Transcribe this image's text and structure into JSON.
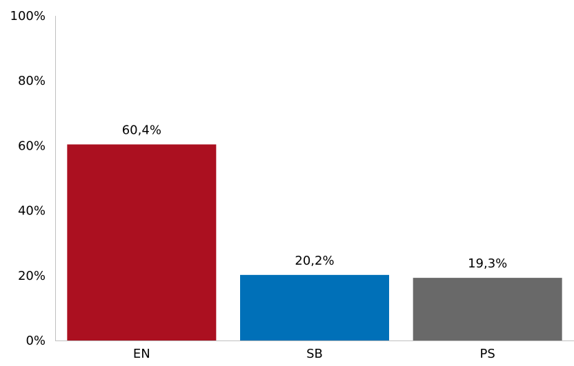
{
  "chart_data": {
    "type": "bar",
    "title": "",
    "xlabel": "",
    "ylabel": "",
    "categories": [
      "EN",
      "SB",
      "PS"
    ],
    "values": [
      60.4,
      20.2,
      19.3
    ],
    "value_labels": [
      "60,4%",
      "20,2%",
      "19,3%"
    ],
    "colors": [
      "#ab1020",
      "#0070b8",
      "#696969"
    ],
    "ylim": [
      0,
      100
    ],
    "yticks": [
      0,
      20,
      40,
      60,
      80,
      100
    ],
    "ytick_labels": [
      "0%",
      "20%",
      "40%",
      "60%",
      "80%",
      "100%"
    ],
    "grid": false,
    "legend": "none",
    "axis_color": "#bfbfbf"
  }
}
